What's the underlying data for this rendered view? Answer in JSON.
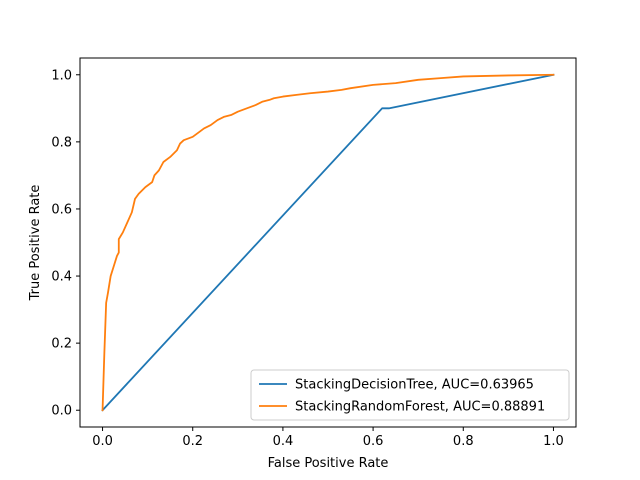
{
  "chart_data": {
    "type": "line",
    "title": "",
    "xlabel": "False Positive Rate",
    "ylabel": "True Positive Rate",
    "xlim": [
      -0.05,
      1.05
    ],
    "ylim": [
      -0.05,
      1.05
    ],
    "xticks": [
      0.0,
      0.2,
      0.4,
      0.6,
      0.8,
      1.0
    ],
    "yticks": [
      0.0,
      0.2,
      0.4,
      0.6,
      0.8,
      1.0
    ],
    "xtick_labels": [
      "0.0",
      "0.2",
      "0.4",
      "0.6",
      "0.8",
      "1.0"
    ],
    "ytick_labels": [
      "0.0",
      "0.2",
      "0.4",
      "0.6",
      "0.8",
      "1.0"
    ],
    "grid": false,
    "legend_position": "lower-right",
    "series": [
      {
        "name": "StackingDecisionTree, AUC=0.63965",
        "color": "#1f77b4",
        "x": [
          0.0,
          0.62,
          0.635,
          1.0
        ],
        "y": [
          0.0,
          0.9,
          0.9,
          1.0
        ]
      },
      {
        "name": "StackingRandomForest, AUC=0.88891",
        "color": "#ff7f0e",
        "x": [
          0.0,
          0.004,
          0.008,
          0.012,
          0.018,
          0.025,
          0.032,
          0.036,
          0.036,
          0.045,
          0.055,
          0.065,
          0.072,
          0.08,
          0.095,
          0.11,
          0.115,
          0.125,
          0.135,
          0.15,
          0.165,
          0.172,
          0.18,
          0.2,
          0.215,
          0.225,
          0.24,
          0.255,
          0.27,
          0.285,
          0.3,
          0.32,
          0.34,
          0.355,
          0.37,
          0.38,
          0.4,
          0.43,
          0.46,
          0.5,
          0.53,
          0.55,
          0.6,
          0.65,
          0.7,
          0.75,
          0.8,
          0.9,
          1.0
        ],
        "y": [
          0.0,
          0.17,
          0.32,
          0.35,
          0.4,
          0.43,
          0.46,
          0.47,
          0.51,
          0.53,
          0.56,
          0.59,
          0.63,
          0.645,
          0.665,
          0.68,
          0.7,
          0.715,
          0.74,
          0.755,
          0.775,
          0.795,
          0.805,
          0.815,
          0.83,
          0.84,
          0.85,
          0.865,
          0.875,
          0.88,
          0.89,
          0.9,
          0.91,
          0.92,
          0.925,
          0.93,
          0.935,
          0.94,
          0.945,
          0.95,
          0.955,
          0.96,
          0.97,
          0.975,
          0.985,
          0.99,
          0.995,
          0.998,
          1.0
        ]
      }
    ]
  }
}
